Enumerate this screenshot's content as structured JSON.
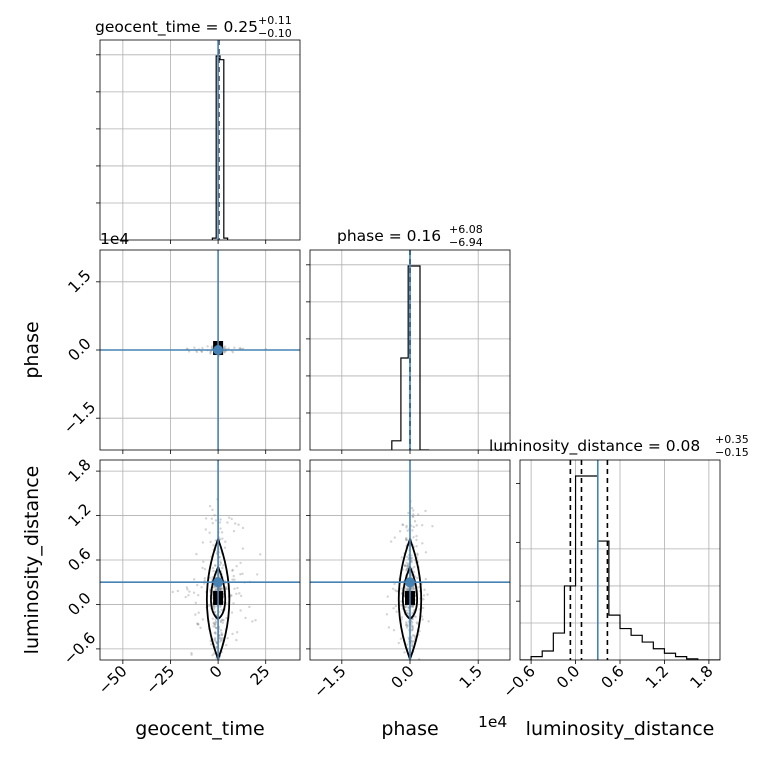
{
  "chart_data": {
    "type": "corner",
    "parameters": [
      "geocent_time",
      "phase",
      "luminosity_distance"
    ],
    "axis_labels": {
      "x": [
        "geocent_time",
        "phase",
        "luminosity_distance"
      ],
      "y": [
        "phase",
        "luminosity_distance"
      ]
    },
    "titles": [
      {
        "param": "geocent_time",
        "median": "0.25",
        "plus": "+0.11",
        "minus": "−0.10"
      },
      {
        "param": "phase",
        "median": "0.16",
        "plus": "+6.08",
        "minus": "−6.94"
      },
      {
        "param": "luminosity_distance",
        "median": "0.08",
        "plus": "+0.35",
        "minus": "−0.15"
      }
    ],
    "offset_text": {
      "phase_axis": "1e4"
    },
    "ranges": {
      "geocent_time": [
        -62,
        43
      ],
      "phase": [
        -22000,
        22000
      ],
      "luminosity_distance": [
        -0.75,
        1.95
      ]
    },
    "ticks": {
      "geocent_time": {
        "values": [
          -50,
          -25,
          0,
          25
        ],
        "labels": [
          "−50",
          "−25",
          "0",
          "25"
        ]
      },
      "phase": {
        "values": [
          -15000,
          0,
          15000
        ],
        "labels": [
          "−1.5",
          "0.0",
          "1.5"
        ]
      },
      "luminosity_distance": {
        "values": [
          -0.6,
          0,
          0.6,
          1.2,
          1.8
        ],
        "labels": [
          "−0.6",
          "0.0",
          "0.6",
          "1.2",
          "1.8"
        ]
      }
    },
    "truth": {
      "geocent_time": 0,
      "phase": 0,
      "luminosity_distance": 0.3
    },
    "quantiles": {
      "geocent_time": [
        0.15,
        0.25,
        0.36
      ],
      "phase": [
        -6.94,
        0.16,
        6.24
      ],
      "luminosity_distance": [
        -0.07,
        0.08,
        0.43
      ]
    },
    "histograms": {
      "geocent_time": {
        "edges": [
          -3,
          -1,
          1,
          3,
          5
        ],
        "counts": [
          0.01,
          1.0,
          0.98,
          0.01
        ]
      },
      "phase": {
        "edges": [
          -4000,
          -2000,
          -400,
          400,
          2200,
          4200
        ],
        "counts": [
          0.05,
          0.5,
          1.0,
          1.0,
          0
        ]
      },
      "luminosity_distance": {
        "edges": [
          -0.75,
          -0.6,
          -0.45,
          -0.3,
          -0.15,
          0.0,
          0.15,
          0.3,
          0.45,
          0.6,
          0.75,
          0.9,
          1.05,
          1.2,
          1.35,
          1.5,
          1.65,
          1.8,
          1.95
        ],
        "counts": [
          0.0,
          0.015,
          0.04,
          0.12,
          0.33,
          0.82,
          0.82,
          0.53,
          0.2,
          0.14,
          0.11,
          0.08,
          0.05,
          0.03,
          0.015,
          0.005,
          0.0,
          0.0
        ]
      }
    },
    "grid": true,
    "colors": {
      "truth": "#4682b4",
      "hist": "#000000",
      "scatter": "#808080",
      "grid": "#b0b0b0"
    }
  }
}
